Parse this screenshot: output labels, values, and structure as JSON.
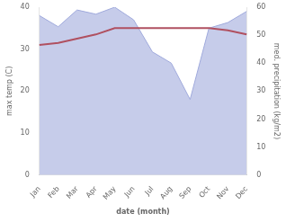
{
  "chart_data": {
    "type": "line",
    "xlabel": "date (month)",
    "ylabel": "max temp (C)",
    "y2label": "med. precipitation (kg/m2)",
    "categories": [
      "Jan",
      "Feb",
      "Mar",
      "Apr",
      "May",
      "Jun",
      "Jul",
      "Aug",
      "Sep",
      "Oct",
      "Nov",
      "Dec"
    ],
    "series": [
      {
        "type": "area",
        "axis": "y2",
        "color": "#a0aadc",
        "values": [
          57.0,
          53.0,
          59.0,
          57.5,
          60.0,
          55.5,
          44.0,
          40.0,
          27.0,
          52.5,
          54.5,
          58.5
        ]
      },
      {
        "type": "line",
        "color": "#b05060",
        "values": [
          31.0,
          31.5,
          32.5,
          33.5,
          35.0,
          35.0,
          35.0,
          35.0,
          35.0,
          35.0,
          34.5,
          33.5
        ]
      }
    ],
    "ylim": [
      0,
      40
    ],
    "yticks": [
      0,
      10,
      20,
      30,
      40
    ],
    "y2lim": [
      0,
      60
    ],
    "y2ticks": [
      0,
      10,
      20,
      30,
      40,
      50,
      60
    ],
    "grid": false
  }
}
